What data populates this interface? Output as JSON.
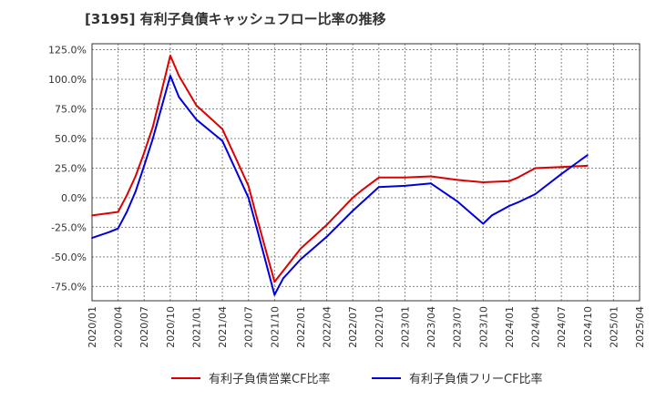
{
  "title": "[3195]  有利子負債キャッシュフロー比率の推移",
  "chart_data": {
    "type": "line",
    "title": "[3195]  有利子負債キャッシュフロー比率の推移",
    "xlabel": "",
    "ylabel": "",
    "x_ticks": [
      "2020/01",
      "2020/04",
      "2020/07",
      "2020/10",
      "2021/01",
      "2021/04",
      "2021/07",
      "2021/10",
      "2022/01",
      "2022/04",
      "2022/07",
      "2022/10",
      "2023/01",
      "2023/04",
      "2023/07",
      "2023/10",
      "2024/01",
      "2024/04",
      "2024/07",
      "2024/10",
      "2025/01",
      "2025/04"
    ],
    "y_ticks": [
      "125.0%",
      "100.0%",
      "75.0%",
      "50.0%",
      "25.0%",
      "0.0%",
      "-25.0%",
      "-50.0%",
      "-75.0%"
    ],
    "y_tick_values": [
      125,
      100,
      75,
      50,
      25,
      0,
      -25,
      -50,
      -75
    ],
    "ylim": [
      -87,
      130
    ],
    "grid": true,
    "legend_position": "bottom",
    "series": [
      {
        "name": "有利子負債営業CF比率",
        "color": "#dd0000",
        "x": [
          "2020/01",
          "2020/04",
          "2020/05",
          "2020/06",
          "2020/07",
          "2020/08",
          "2020/10",
          "2020/11",
          "2021/01",
          "2021/04",
          "2021/07",
          "2021/08",
          "2021/10",
          "2022/01",
          "2022/04",
          "2022/07",
          "2022/08",
          "2022/10",
          "2023/01",
          "2023/04",
          "2023/07",
          "2023/10",
          "2024/01",
          "2024/02",
          "2024/04",
          "2024/07",
          "2024/10"
        ],
        "values": [
          -15,
          -12,
          2,
          18,
          38,
          60,
          120,
          103,
          78,
          58,
          10,
          -18,
          -71,
          -43,
          -23,
          0,
          6,
          17,
          17,
          18,
          15,
          13,
          14,
          17,
          25,
          26,
          27
        ]
      },
      {
        "name": "有利子負債フリーCF比率",
        "color": "#0000dd",
        "x": [
          "2020/01",
          "2020/03",
          "2020/04",
          "2020/05",
          "2020/06",
          "2020/07",
          "2020/08",
          "2020/10",
          "2020/11",
          "2021/01",
          "2021/04",
          "2021/07",
          "2021/08",
          "2021/10",
          "2021/11",
          "2022/01",
          "2022/04",
          "2022/07",
          "2022/10",
          "2023/01",
          "2023/04",
          "2023/07",
          "2023/10",
          "2023/11",
          "2024/01",
          "2024/02",
          "2024/04",
          "2024/07",
          "2024/10"
        ],
        "values": [
          -34,
          -29,
          -26,
          -12,
          5,
          27,
          50,
          103,
          85,
          66,
          48,
          0,
          -27,
          -82,
          -68,
          -52,
          -33,
          -11,
          9,
          10,
          12,
          -3,
          -22,
          -15,
          -7,
          -4,
          3,
          20,
          36
        ]
      }
    ]
  }
}
